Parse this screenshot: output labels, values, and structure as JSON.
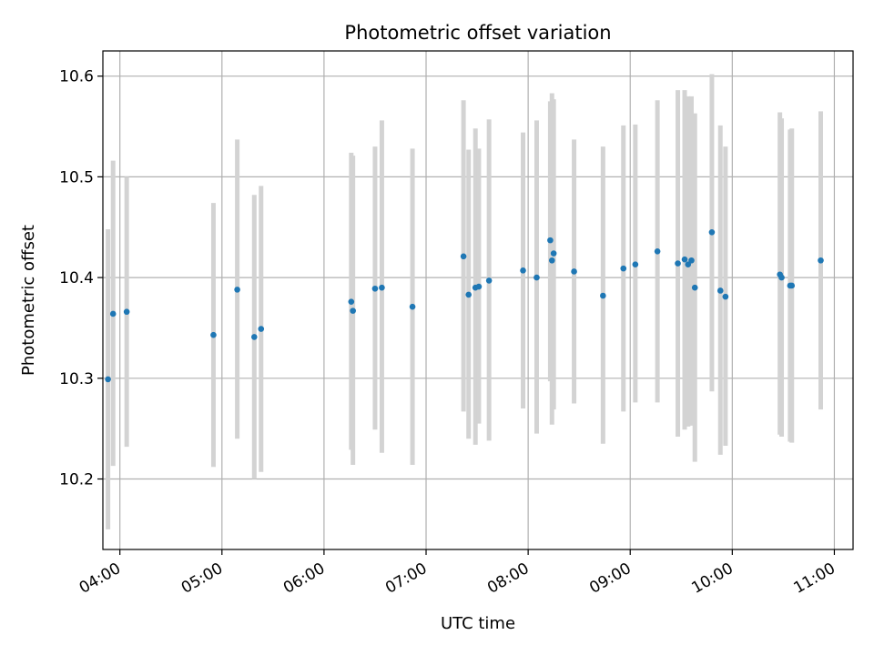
{
  "chart_data": {
    "type": "scatter",
    "title": "Photometric offset variation",
    "xlabel": "UTC time",
    "ylabel": "Photometric offset",
    "x_unit": "UTC time (HH:MM)",
    "xlim": [
      "03:50",
      "11:11"
    ],
    "ylim": [
      10.13,
      10.625
    ],
    "grid": true,
    "x_ticks": [
      "04:00",
      "05:00",
      "06:00",
      "07:00",
      "08:00",
      "09:00",
      "10:00",
      "11:00"
    ],
    "y_ticks": [
      "10.2",
      "10.3",
      "10.4",
      "10.5",
      "10.6"
    ],
    "y_tick_values": [
      10.2,
      10.3,
      10.4,
      10.5,
      10.6
    ],
    "colors": {
      "marker": "#1f77b4",
      "errorbar": "#d3d3d3",
      "grid": "#b0b0b0"
    },
    "series": [
      {
        "points": [
          {
            "x": "03:53",
            "y": 10.299,
            "ylow": 10.15,
            "yhigh": 10.448
          },
          {
            "x": "03:56",
            "y": 10.364,
            "ylow": 10.213,
            "yhigh": 10.516
          },
          {
            "x": "04:04",
            "y": 10.366,
            "ylow": 10.232,
            "yhigh": 10.5
          },
          {
            "x": "04:55",
            "y": 10.343,
            "ylow": 10.212,
            "yhigh": 10.474
          },
          {
            "x": "05:09",
            "y": 10.388,
            "ylow": 10.24,
            "yhigh": 10.537
          },
          {
            "x": "05:19",
            "y": 10.341,
            "ylow": 10.2,
            "yhigh": 10.482
          },
          {
            "x": "05:23",
            "y": 10.349,
            "ylow": 10.207,
            "yhigh": 10.491
          },
          {
            "x": "06:16",
            "y": 10.376,
            "ylow": 10.229,
            "yhigh": 10.524
          },
          {
            "x": "06:17",
            "y": 10.367,
            "ylow": 10.214,
            "yhigh": 10.521
          },
          {
            "x": "06:30",
            "y": 10.389,
            "ylow": 10.249,
            "yhigh": 10.53
          },
          {
            "x": "06:34",
            "y": 10.39,
            "ylow": 10.226,
            "yhigh": 10.556
          },
          {
            "x": "06:52",
            "y": 10.371,
            "ylow": 10.214,
            "yhigh": 10.528
          },
          {
            "x": "07:22",
            "y": 10.421,
            "ylow": 10.267,
            "yhigh": 10.576
          },
          {
            "x": "07:25",
            "y": 10.383,
            "ylow": 10.24,
            "yhigh": 10.527
          },
          {
            "x": "07:29",
            "y": 10.39,
            "ylow": 10.234,
            "yhigh": 10.548
          },
          {
            "x": "07:31",
            "y": 10.391,
            "ylow": 10.255,
            "yhigh": 10.528
          },
          {
            "x": "07:37",
            "y": 10.397,
            "ylow": 10.238,
            "yhigh": 10.557
          },
          {
            "x": "07:57",
            "y": 10.407,
            "ylow": 10.27,
            "yhigh": 10.544
          },
          {
            "x": "08:05",
            "y": 10.4,
            "ylow": 10.245,
            "yhigh": 10.556
          },
          {
            "x": "08:13",
            "y": 10.437,
            "ylow": 10.297,
            "yhigh": 10.575
          },
          {
            "x": "08:14",
            "y": 10.417,
            "ylow": 10.254,
            "yhigh": 10.583
          },
          {
            "x": "08:15",
            "y": 10.424,
            "ylow": 10.269,
            "yhigh": 10.577
          },
          {
            "x": "08:27",
            "y": 10.406,
            "ylow": 10.275,
            "yhigh": 10.537
          },
          {
            "x": "08:44",
            "y": 10.382,
            "ylow": 10.235,
            "yhigh": 10.53
          },
          {
            "x": "08:56",
            "y": 10.409,
            "ylow": 10.267,
            "yhigh": 10.551
          },
          {
            "x": "09:03",
            "y": 10.413,
            "ylow": 10.276,
            "yhigh": 10.552
          },
          {
            "x": "09:16",
            "y": 10.426,
            "ylow": 10.276,
            "yhigh": 10.576
          },
          {
            "x": "09:28",
            "y": 10.414,
            "ylow": 10.242,
            "yhigh": 10.586
          },
          {
            "x": "09:32",
            "y": 10.418,
            "ylow": 10.249,
            "yhigh": 10.586
          },
          {
            "x": "09:34",
            "y": 10.413,
            "ylow": 10.252,
            "yhigh": 10.58
          },
          {
            "x": "09:36",
            "y": 10.417,
            "ylow": 10.253,
            "yhigh": 10.58
          },
          {
            "x": "09:38",
            "y": 10.39,
            "ylow": 10.217,
            "yhigh": 10.563
          },
          {
            "x": "09:48",
            "y": 10.445,
            "ylow": 10.287,
            "yhigh": 10.602
          },
          {
            "x": "09:53",
            "y": 10.387,
            "ylow": 10.224,
            "yhigh": 10.551
          },
          {
            "x": "09:56",
            "y": 10.381,
            "ylow": 10.233,
            "yhigh": 10.53
          },
          {
            "x": "10:28",
            "y": 10.403,
            "ylow": 10.244,
            "yhigh": 10.564
          },
          {
            "x": "10:29",
            "y": 10.4,
            "ylow": 10.242,
            "yhigh": 10.558
          },
          {
            "x": "10:34",
            "y": 10.392,
            "ylow": 10.237,
            "yhigh": 10.547
          },
          {
            "x": "10:35",
            "y": 10.392,
            "ylow": 10.236,
            "yhigh": 10.548
          },
          {
            "x": "10:52",
            "y": 10.417,
            "ylow": 10.269,
            "yhigh": 10.565
          }
        ]
      }
    ]
  }
}
